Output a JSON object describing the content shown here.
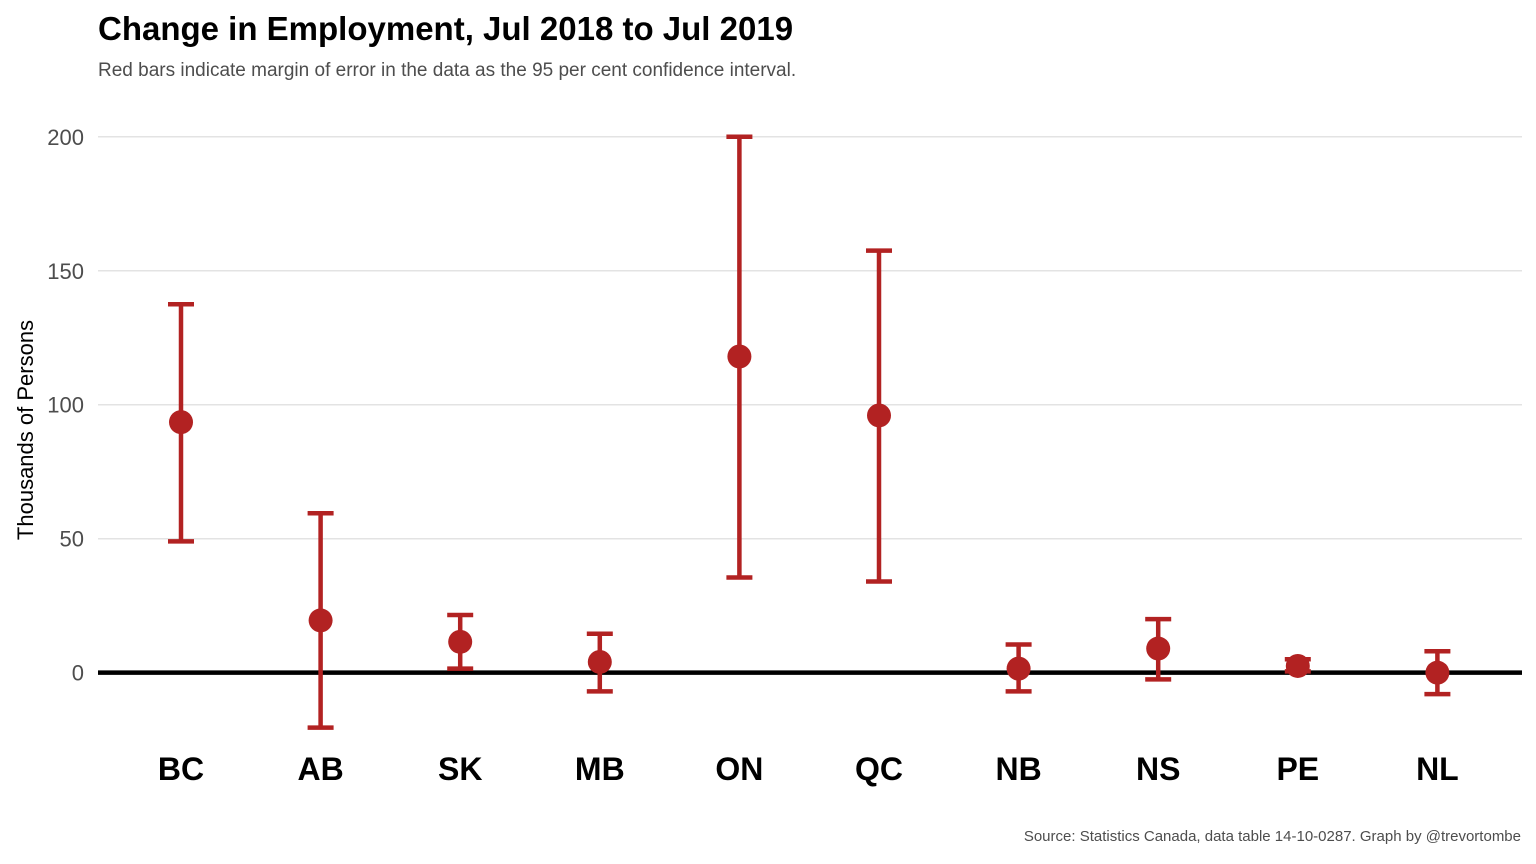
{
  "chart_data": {
    "type": "scatter",
    "title": "Change in Employment, Jul 2018 to Jul 2019",
    "subtitle": "Red bars indicate margin of error in the data as the 95 per cent confidence interval.",
    "ylabel": "Thousands of Persons",
    "caption": "Source: Statistics Canada, data table 14-10-0287. Graph by @trevortombe",
    "ylim": [
      -27,
      210
    ],
    "yticks": [
      0,
      50,
      100,
      150,
      200
    ],
    "grid": true,
    "zero_line": true,
    "color": "#b22222",
    "categories": [
      "BC",
      "AB",
      "SK",
      "MB",
      "ON",
      "QC",
      "NB",
      "NS",
      "PE",
      "NL"
    ],
    "series": [
      {
        "values": [
          93.5,
          19.5,
          11.5,
          4,
          118,
          96,
          1.5,
          9,
          2.5,
          0
        ],
        "lower": [
          49,
          -20.5,
          1.5,
          -7,
          35.5,
          34,
          -7,
          -2.5,
          0.5,
          -8
        ],
        "upper": [
          137.5,
          59.5,
          21.5,
          14.5,
          200,
          157.5,
          10.5,
          20,
          5,
          8
        ]
      }
    ]
  }
}
